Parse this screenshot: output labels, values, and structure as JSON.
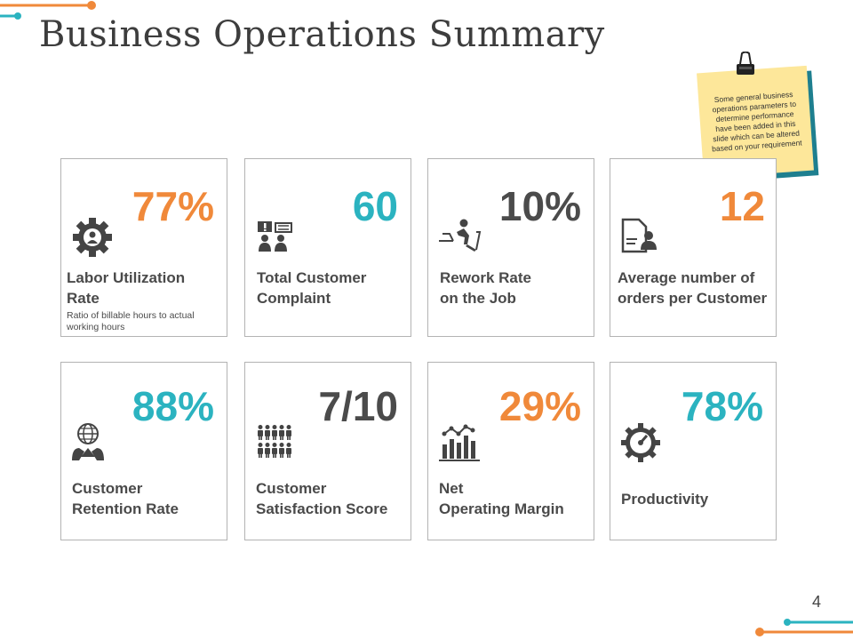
{
  "title": "Business Operations Summary",
  "note": "Some general business operations parameters to determine performance have been added in this slide which can be altered based on your requirement",
  "page_number": "4",
  "colors": {
    "orange": "#f0893a",
    "teal": "#2bb3c0",
    "gray": "#4b4b4b",
    "note_bg": "#fde79a",
    "note_shadow": "#1e7f8f"
  },
  "cards": [
    {
      "value": "77%",
      "value_color": "orange",
      "label_line1": "Labor Utilization",
      "label_line2": "Rate",
      "sub": "Ratio of billable hours to actual working hours",
      "icon": "gear-person-icon"
    },
    {
      "value": "60",
      "value_color": "teal",
      "label_line1": "Total Customer",
      "label_line2": "Complaint",
      "icon": "complaint-chat-icon"
    },
    {
      "value": "10%",
      "value_color": "gray",
      "label_line1": "Rework Rate",
      "label_line2": "on the Job",
      "icon": "desk-worker-icon"
    },
    {
      "value": "12",
      "value_color": "orange",
      "label_line1": "Average number of",
      "label_line2": "orders per Customer",
      "icon": "order-document-icon"
    },
    {
      "value": "88%",
      "value_color": "teal",
      "label_line1": "Customer",
      "label_line2": "Retention Rate",
      "icon": "globe-people-icon"
    },
    {
      "value": "7/10",
      "value_color": "gray",
      "label_line1": "Customer",
      "label_line2": "Satisfaction Score",
      "icon": "people-group-icon"
    },
    {
      "value": "29%",
      "value_color": "orange",
      "label_line1": "Net",
      "label_line2": "Operating Margin",
      "icon": "bar-chart-trend-icon"
    },
    {
      "value": "78%",
      "value_color": "teal",
      "label_line1": "Productivity",
      "label_line2": "",
      "icon": "gauge-gear-icon"
    }
  ]
}
